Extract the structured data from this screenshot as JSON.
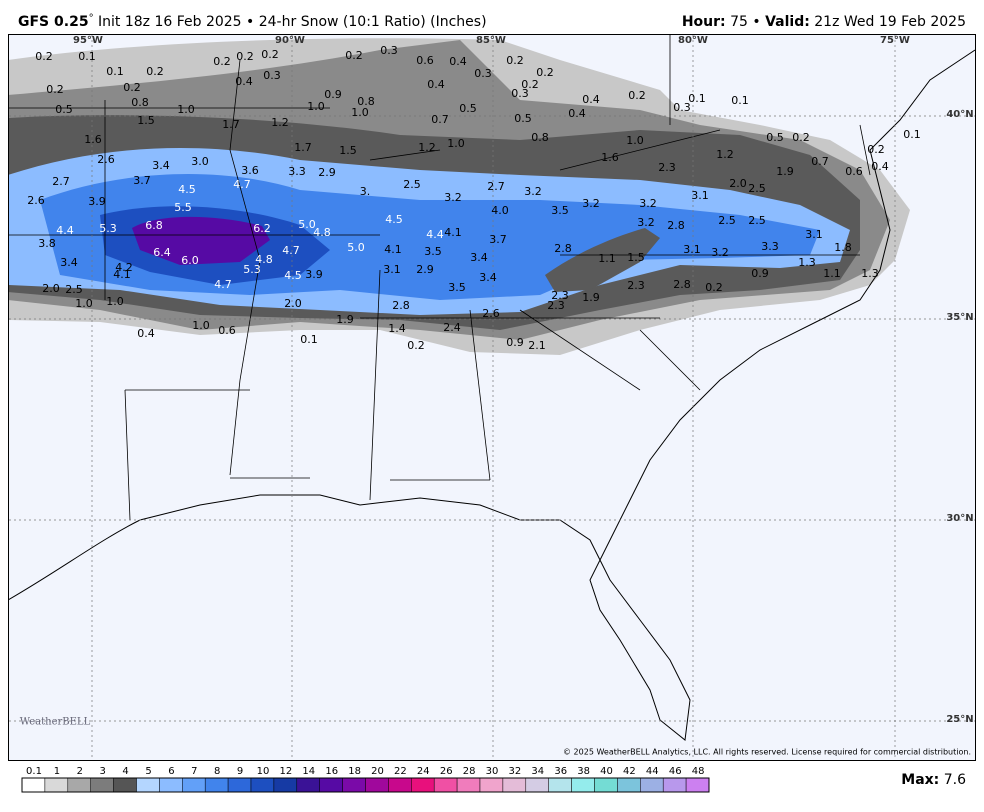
{
  "header": {
    "model": "GFS 0.25",
    "degree": "°",
    "description": " Init 18z 16 Feb 2025 • 24-hr Snow (10:1 Ratio) (Inches)",
    "hour_label": "Hour:",
    "hour": " 75 • ",
    "valid_label": "Valid:",
    "valid": " 21z Wed 19 Feb 2025"
  },
  "longitudes": [
    "95°W",
    "90°W",
    "85°W",
    "80°W",
    "75°W"
  ],
  "latitudes": [
    "40°N",
    "35°N",
    "30°N",
    "25°N"
  ],
  "map_labels": [
    "0.2",
    "0.1",
    "0.1",
    "0.2",
    "0.2",
    "0.2",
    "0.2",
    "0.3",
    "0.4",
    "0.2",
    "0.3",
    "0.6",
    "0.4",
    "0.2",
    "0.3",
    "0.2",
    "0.4",
    "0.2",
    "0.3",
    "0.4",
    "0.2",
    "0.1",
    "0.1",
    "0.3",
    "0.2",
    "0.2",
    "0.8",
    "1.0",
    "0.5",
    "0.9",
    "0.8",
    "1.0",
    "1.0",
    "0.5",
    "0.7",
    "0.5",
    "0.4",
    "1.5",
    "1.7",
    "1.2",
    "0.8",
    "1.6",
    "1.7",
    "1.5",
    "1.2",
    "1.0",
    "1.0",
    "2.6",
    "3.4",
    "3.0",
    "3.6",
    "3.3",
    "2.9",
    "2.7",
    "3.7",
    "4.5",
    "4.7",
    "2.5",
    "2.7",
    "3.2",
    "2.6",
    "3.9",
    "5.5",
    "3.",
    "3.2",
    "3.2",
    "3.1",
    "2.0",
    "2.5",
    "4.0",
    "3.5",
    "3.2",
    "4.5",
    "6.8",
    "6.2",
    "5.0",
    "4.8",
    "5.3",
    "4.4",
    "2.5",
    "2.5",
    "3.2",
    "2.8",
    "4.4",
    "4.1",
    "3.7",
    "3.8",
    "5.0",
    "4.1",
    "3.5",
    "4.7",
    "6.4",
    "6.0",
    "4.8",
    "5.3",
    "3.4",
    "4.2",
    "4.1",
    "3.4",
    "2.8",
    "3.1",
    "3.2",
    "3.3",
    "3.1",
    "4.5",
    "3.9",
    "3.1",
    "2.9",
    "3.4",
    "1.1",
    "1.5",
    "0.9",
    "4.7",
    "2.0",
    "2.5",
    "3.5",
    "2.3",
    "2.8",
    "0.2",
    "2.3",
    "1.9",
    "1.0",
    "1.0",
    "2.0",
    "2.8",
    "2.3",
    "2.6",
    "1.9",
    "1.0",
    "0.6",
    "0.4",
    "1.4",
    "2.4",
    "0.1",
    "0.2",
    "0.9",
    "2.1",
    "0.2",
    "0.5",
    "0.1",
    "1.2",
    "1.9",
    "0.2",
    "0.4",
    "0.6",
    "0.7",
    "2.3",
    "1.6",
    "1.3",
    "1.1",
    "1.3",
    "1.8"
  ],
  "colorbar": {
    "labels": [
      "0.1",
      "1",
      "2",
      "3",
      "4",
      "5",
      "6",
      "7",
      "8",
      "9",
      "10",
      "12",
      "14",
      "16",
      "18",
      "20",
      "22",
      "24",
      "26",
      "28",
      "30",
      "32",
      "34",
      "36",
      "38",
      "40",
      "42",
      "44",
      "46",
      "48"
    ],
    "colors": [
      "#ffffff",
      "#d9d9d9",
      "#a8a8a8",
      "#7c7c7c",
      "#555555",
      "#b4d6ff",
      "#8cbcff",
      "#62a0f8",
      "#4184ec",
      "#2d68da",
      "#1d4fc0",
      "#163aa4",
      "#3a1296",
      "#560aa4",
      "#7a0aa8",
      "#a0089c",
      "#c8088c",
      "#e8107c",
      "#f050a4",
      "#f07cbc",
      "#f0a4cc",
      "#e4bcd8",
      "#d4cce4",
      "#b4e4ec",
      "#94ecec",
      "#74dcd4",
      "#7cc4dc",
      "#9cb0e4",
      "#b898ec",
      "#cc80f0"
    ]
  },
  "max_label": "Max:",
  "max_value": " 7.6",
  "logo": "WeatherBELL",
  "copyright": "© 2025 WeatherBELL Analytics, LLC. All rights reserved. License required for commercial distribution."
}
